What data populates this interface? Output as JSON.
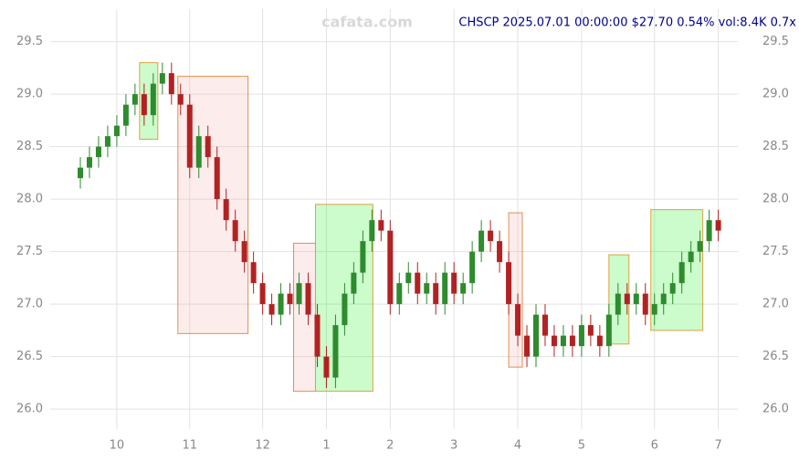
{
  "chart_data": {
    "type": "candlestick",
    "title": "CHSCP 2025.07.01 00:00:00 $27.70 0.54% vol:8.4K 0.7x",
    "watermark": "cafata.com",
    "categories": [
      null,
      null,
      null,
      null,
      "10",
      null,
      null,
      null,
      null,
      null,
      null,
      null,
      "11",
      null,
      null,
      null,
      null,
      null,
      null,
      null,
      "12",
      null,
      null,
      null,
      null,
      null,
      null,
      "1",
      null,
      null,
      null,
      null,
      null,
      null,
      "2",
      null,
      null,
      null,
      null,
      null,
      null,
      "3",
      null,
      null,
      null,
      null,
      null,
      null,
      "4",
      null,
      null,
      null,
      null,
      null,
      null,
      "5",
      null,
      null,
      null,
      null,
      null,
      null,
      null,
      "6",
      null,
      null,
      null,
      null,
      null,
      null,
      "7"
    ],
    "open": [
      28.2,
      28.3,
      28.4,
      28.5,
      28.6,
      28.7,
      28.9,
      29.0,
      28.8,
      29.1,
      29.2,
      29.0,
      28.9,
      28.3,
      28.6,
      28.4,
      28.0,
      27.8,
      27.6,
      27.4,
      27.2,
      27.0,
      26.9,
      27.1,
      27.0,
      27.2,
      26.9,
      26.5,
      26.3,
      26.8,
      27.1,
      27.3,
      27.6,
      27.8,
      27.7,
      27.0,
      27.2,
      27.3,
      27.1,
      27.2,
      27.0,
      27.3,
      27.1,
      27.2,
      27.5,
      27.7,
      27.6,
      27.4,
      27.0,
      26.7,
      26.5,
      26.9,
      26.7,
      26.6,
      26.7,
      26.6,
      26.8,
      26.7,
      26.6,
      26.9,
      27.1,
      27.0,
      27.1,
      26.9,
      27.0,
      27.1,
      27.2,
      27.4,
      27.5,
      27.6,
      27.8
    ],
    "high": [
      28.4,
      28.5,
      28.6,
      28.7,
      28.8,
      29.0,
      29.1,
      29.1,
      29.2,
      29.3,
      29.3,
      29.1,
      29.0,
      28.7,
      28.7,
      28.5,
      28.1,
      27.9,
      27.7,
      27.5,
      27.3,
      27.1,
      27.2,
      27.2,
      27.3,
      27.3,
      27.0,
      26.6,
      26.9,
      27.2,
      27.4,
      27.7,
      27.9,
      27.9,
      27.8,
      27.3,
      27.4,
      27.4,
      27.3,
      27.3,
      27.4,
      27.4,
      27.3,
      27.6,
      27.8,
      27.8,
      27.7,
      27.5,
      27.1,
      26.8,
      27.0,
      27.0,
      26.8,
      26.8,
      26.8,
      26.9,
      26.9,
      26.8,
      27.0,
      27.2,
      27.2,
      27.2,
      27.2,
      27.1,
      27.2,
      27.3,
      27.5,
      27.6,
      27.7,
      27.9,
      27.9
    ],
    "low": [
      28.1,
      28.2,
      28.3,
      28.4,
      28.5,
      28.6,
      28.8,
      28.7,
      28.7,
      29.0,
      28.9,
      28.8,
      28.2,
      28.2,
      28.3,
      27.9,
      27.7,
      27.5,
      27.3,
      27.1,
      26.9,
      26.8,
      26.8,
      26.9,
      26.9,
      26.8,
      26.4,
      26.2,
      26.2,
      26.7,
      27.0,
      27.2,
      27.5,
      27.6,
      26.9,
      26.9,
      27.1,
      27.0,
      27.0,
      26.9,
      26.9,
      27.0,
      27.0,
      27.1,
      27.4,
      27.5,
      27.3,
      26.9,
      26.6,
      26.4,
      26.4,
      26.6,
      26.5,
      26.5,
      26.5,
      26.5,
      26.6,
      26.5,
      26.5,
      26.8,
      26.9,
      26.9,
      26.8,
      26.8,
      26.9,
      27.0,
      27.1,
      27.3,
      27.4,
      27.5,
      27.6
    ],
    "close": [
      28.3,
      28.4,
      28.5,
      28.6,
      28.7,
      28.9,
      29.0,
      28.8,
      29.1,
      29.2,
      29.0,
      28.9,
      28.3,
      28.6,
      28.4,
      28.0,
      27.8,
      27.6,
      27.4,
      27.2,
      27.0,
      26.9,
      27.1,
      27.0,
      27.2,
      26.9,
      26.5,
      26.3,
      26.8,
      27.1,
      27.3,
      27.6,
      27.8,
      27.7,
      27.0,
      27.2,
      27.3,
      27.1,
      27.2,
      27.0,
      27.3,
      27.1,
      27.2,
      27.5,
      27.7,
      27.6,
      27.4,
      27.0,
      26.7,
      26.5,
      26.9,
      26.7,
      26.6,
      26.7,
      26.6,
      26.8,
      26.7,
      26.6,
      26.9,
      27.1,
      27.0,
      27.1,
      26.9,
      27.0,
      27.1,
      27.2,
      27.4,
      27.5,
      27.6,
      27.8,
      27.7
    ],
    "up_color": "#2e8b2e",
    "down_color": "#b22222",
    "zones": [
      {
        "x": [
          6.5,
          8.5
        ],
        "y": [
          28.57,
          29.3
        ],
        "color": "#33ee33"
      },
      {
        "x": [
          10.7,
          18.4
        ],
        "y": [
          26.72,
          29.17
        ],
        "color": "#f7b4b4"
      },
      {
        "x": [
          23.4,
          25.8
        ],
        "y": [
          26.17,
          27.58
        ],
        "color": "#f7b4b4"
      },
      {
        "x": [
          25.8,
          32.1
        ],
        "y": [
          26.17,
          27.95
        ],
        "color": "#33ee33"
      },
      {
        "x": [
          47,
          48.5
        ],
        "y": [
          26.4,
          27.87
        ],
        "color": "#f7b4b4"
      },
      {
        "x": [
          58,
          60.2
        ],
        "y": [
          26.62,
          27.47
        ],
        "color": "#33ee33"
      },
      {
        "x": [
          62.6,
          68.3
        ],
        "y": [
          26.75,
          27.9
        ],
        "color": "#33ee33"
      }
    ],
    "ylim": [
      25.81,
      29.81
    ],
    "yticks": [
      {
        "value": 26,
        "label": "26.0"
      },
      {
        "value": 26.5,
        "label": "26.5"
      },
      {
        "value": 27,
        "label": "27.0"
      },
      {
        "value": 27.5,
        "label": "27.5"
      },
      {
        "value": 28,
        "label": "28.0"
      },
      {
        "value": 28.5,
        "label": "28.5"
      },
      {
        "value": 29,
        "label": "29.0"
      },
      {
        "value": 29.5,
        "label": "29.5"
      }
    ],
    "grid": true
  }
}
